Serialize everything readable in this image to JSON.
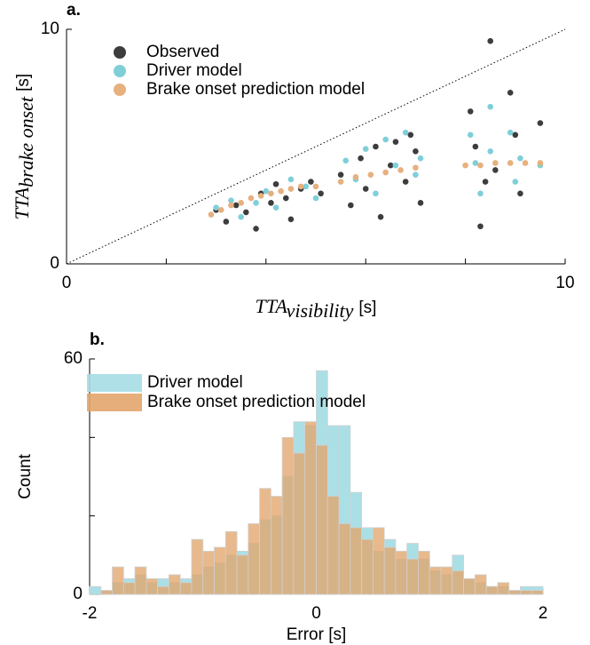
{
  "chart_data": [
    {
      "type": "scatter",
      "panel_label": "a.",
      "xlabel": {
        "base": "TTA",
        "subscript": "visibility",
        "unit": "[s]"
      },
      "ylabel": {
        "base": "TTA",
        "subscript": "brake onset",
        "unit": "[s]"
      },
      "xlim": [
        0,
        10
      ],
      "ylim": [
        0,
        10
      ],
      "xticks": [
        0,
        10
      ],
      "minor_xticks": [
        2,
        4,
        6,
        8
      ],
      "yticks": [
        0,
        10
      ],
      "legend": "upper left",
      "series": [
        {
          "name": "Observed",
          "color": "#3d3d3d",
          "x": [
            3.0,
            3.2,
            3.4,
            3.6,
            3.8,
            3.9,
            4.1,
            4.2,
            4.4,
            4.5,
            4.7,
            4.9,
            5.1,
            5.5,
            5.7,
            5.9,
            6.0,
            6.2,
            6.3,
            6.5,
            6.6,
            6.8,
            6.9,
            7.0,
            7.1,
            8.1,
            8.2,
            8.3,
            8.4,
            8.5,
            8.6,
            8.9,
            9.0,
            9.1,
            9.5
          ],
          "y": [
            2.3,
            1.8,
            2.5,
            2.2,
            1.5,
            3.0,
            2.6,
            3.4,
            2.8,
            1.9,
            3.2,
            3.5,
            3.0,
            3.8,
            2.5,
            4.5,
            3.2,
            5.0,
            2.0,
            4.2,
            5.2,
            3.5,
            5.5,
            4.8,
            2.6,
            6.5,
            5.0,
            1.6,
            3.5,
            9.5,
            4.0,
            7.3,
            5.5,
            3.0,
            6.0
          ]
        },
        {
          "name": "Driver model",
          "color": "#7fcfd9",
          "x": [
            3.0,
            3.3,
            3.5,
            3.8,
            4.0,
            4.2,
            4.5,
            4.8,
            5.0,
            5.6,
            5.8,
            6.0,
            6.2,
            6.4,
            6.6,
            6.8,
            7.0,
            7.1,
            8.1,
            8.2,
            8.3,
            8.5,
            8.5,
            8.9,
            9.0,
            9.1,
            9.5
          ],
          "y": [
            2.4,
            2.7,
            2.0,
            2.6,
            3.1,
            2.4,
            3.6,
            3.3,
            2.8,
            4.4,
            3.6,
            4.9,
            3.0,
            5.3,
            4.2,
            5.6,
            3.8,
            4.5,
            5.5,
            4.3,
            3.0,
            6.7,
            4.8,
            5.6,
            3.5,
            4.5,
            4.2
          ]
        },
        {
          "name": "Brake onset prediction model",
          "color": "#e6b07f",
          "x": [
            2.9,
            3.1,
            3.3,
            3.5,
            3.7,
            3.9,
            4.1,
            4.3,
            4.5,
            4.7,
            5.0,
            5.5,
            5.8,
            6.1,
            6.4,
            6.7,
            7.0,
            8.0,
            8.3,
            8.6,
            8.9,
            9.2,
            9.5
          ],
          "y": [
            2.1,
            2.3,
            2.5,
            2.6,
            2.8,
            2.9,
            3.0,
            3.1,
            3.2,
            3.3,
            3.3,
            3.5,
            3.7,
            3.8,
            3.9,
            4.0,
            4.1,
            4.2,
            4.2,
            4.3,
            4.3,
            4.3,
            4.3
          ]
        }
      ]
    },
    {
      "type": "histogram",
      "panel_label": "b.",
      "xlabel": "Error [s]",
      "ylabel": "Count",
      "xlim": [
        -2,
        2
      ],
      "ylim": [
        0,
        60
      ],
      "xticks": [
        -2,
        0,
        2
      ],
      "minor_xticks": [
        -1,
        1
      ],
      "yticks": [
        0,
        60
      ],
      "minor_yticks": [
        20,
        40
      ],
      "legend": "upper left",
      "bins": [
        -2,
        -1.9,
        -1.8,
        -1.7,
        -1.6,
        -1.5,
        -1.4,
        -1.3,
        -1.2,
        -1.1,
        -1,
        -0.9,
        -0.8,
        -0.7,
        -0.6,
        -0.5,
        -0.4,
        -0.3,
        -0.2,
        -0.1,
        0,
        0.1,
        0.2,
        0.3,
        0.4,
        0.5,
        0.6,
        0.7,
        0.8,
        0.9,
        1,
        1.1,
        1.2,
        1.3,
        1.4,
        1.5,
        1.6,
        1.7,
        1.8,
        1.9,
        2
      ],
      "series": [
        {
          "name": "Driver model",
          "color": "#a6dde5",
          "values": [
            2,
            1,
            3,
            4,
            5,
            3,
            4,
            3,
            4,
            5,
            7,
            8,
            10,
            11,
            13,
            19,
            20,
            30,
            44,
            43,
            57,
            43,
            43,
            26,
            17,
            11,
            14,
            9,
            13,
            9,
            6,
            5,
            10,
            4,
            3,
            2,
            2,
            1,
            2,
            2
          ]
        },
        {
          "name": "Brake onset prediction model",
          "color": "#e2a56c",
          "values": [
            0,
            1,
            7,
            3,
            7,
            4,
            2,
            5,
            3,
            14,
            11,
            12,
            16,
            10,
            18,
            27,
            25,
            40,
            36,
            44,
            38,
            25,
            18,
            17,
            14,
            17,
            12,
            11,
            9,
            11,
            7,
            7,
            6,
            4,
            5,
            2,
            3,
            1,
            1,
            1
          ]
        }
      ]
    }
  ]
}
